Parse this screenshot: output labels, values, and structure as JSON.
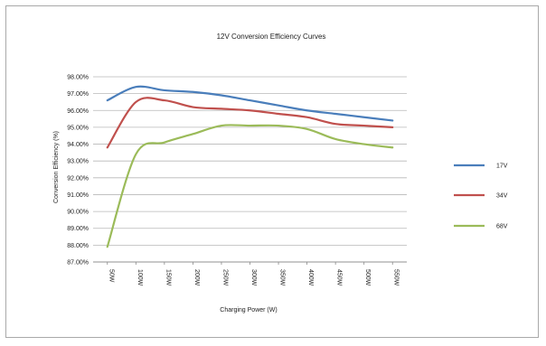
{
  "chart_data": {
    "type": "line",
    "title": "12V Conversion Efficiency Curves",
    "xlabel": "Charging Power (W)",
    "ylabel": "Conversion Efficiency (%)",
    "categories": [
      "50W",
      "100W",
      "150W",
      "200W",
      "250W",
      "300W",
      "350W",
      "400W",
      "450W",
      "500W",
      "550W"
    ],
    "ylim": [
      87,
      98
    ],
    "yticks": [
      "87.00%",
      "88.00%",
      "89.00%",
      "90.00%",
      "91.00%",
      "92.00%",
      "93.00%",
      "94.00%",
      "95.00%",
      "96.00%",
      "97.00%",
      "98.00%"
    ],
    "grid": true,
    "legend_position": "right",
    "series": [
      {
        "name": "17V",
        "color": "#4a7ebb",
        "values": [
          96.6,
          97.4,
          97.2,
          97.1,
          96.9,
          96.6,
          96.3,
          96.0,
          95.8,
          95.6,
          95.4
        ]
      },
      {
        "name": "34V",
        "color": "#c0504d",
        "values": [
          93.8,
          96.5,
          96.6,
          96.2,
          96.1,
          96.0,
          95.8,
          95.6,
          95.2,
          95.1,
          95.0
        ]
      },
      {
        "name": "68V",
        "color": "#9bbb59",
        "values": [
          87.9,
          93.4,
          94.1,
          94.6,
          95.1,
          95.1,
          95.1,
          94.9,
          94.3,
          94.0,
          93.8
        ]
      }
    ]
  }
}
